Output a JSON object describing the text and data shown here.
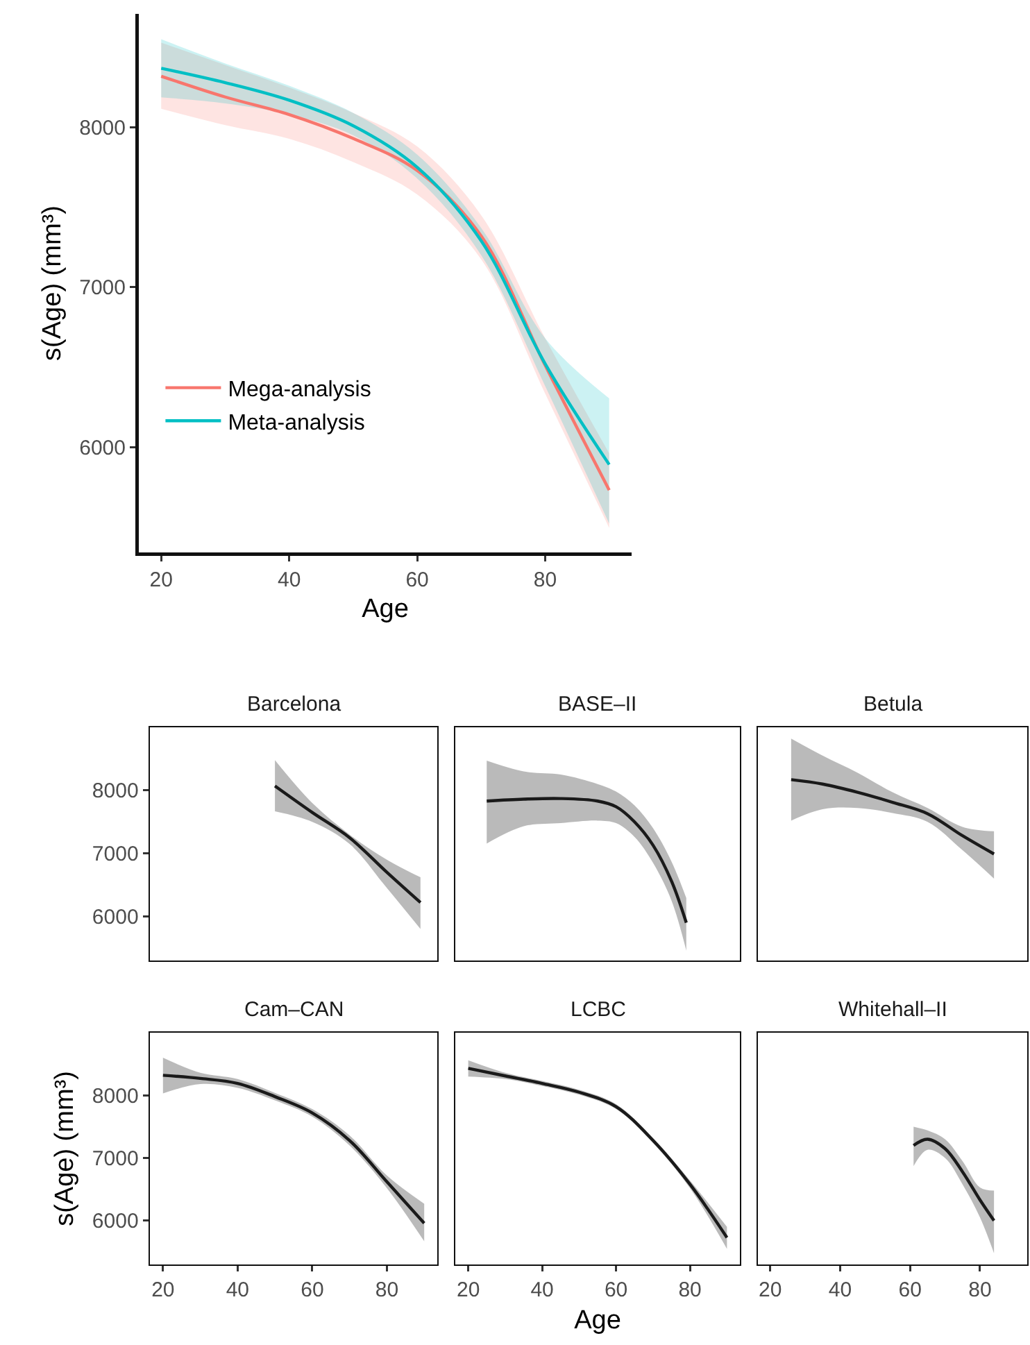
{
  "chart_data": [
    {
      "type": "line",
      "xlabel": "Age",
      "ylabel": "s(Age) (mm³)",
      "xlim": [
        16.5,
        93.5
      ],
      "ylim": [
        5340,
        8710
      ],
      "xticks": [
        20,
        40,
        60,
        80
      ],
      "yticks": [
        6000,
        7000,
        8000
      ],
      "legend": "bottom left",
      "series": [
        {
          "name": "Mega-analysis",
          "color": "#f8766d",
          "x": [
            20,
            30,
            40,
            50,
            60,
            70,
            80,
            90
          ],
          "values": [
            8320,
            8190,
            8080,
            7930,
            7730,
            7320,
            6510,
            5730
          ],
          "lower": [
            8116,
            8014,
            7928,
            7783,
            7580,
            7174,
            6333,
            5493
          ],
          "upper": [
            8530,
            8390,
            8250,
            8090,
            7880,
            7450,
            6680,
            5960
          ]
        },
        {
          "name": "Meta-analysis",
          "color": "#00bfc4",
          "x": [
            20,
            30,
            40,
            50,
            60,
            70,
            80,
            90
          ],
          "values": [
            8370,
            8280,
            8170,
            8010,
            7750,
            7290,
            6520,
            5890
          ],
          "lower": [
            8188,
            8150,
            8080,
            7950,
            7680,
            7200,
            6380,
            5520
          ],
          "upper": [
            8551,
            8400,
            8260,
            8090,
            7830,
            7370,
            6680,
            6304
          ]
        }
      ]
    },
    {
      "type": "line",
      "title": "Barcelona",
      "xlim": [
        16.5,
        93.5
      ],
      "ylim": [
        5300,
        9000
      ],
      "xticks": [
        20,
        40,
        60,
        80
      ],
      "yticks": [
        6000,
        7000,
        8000
      ],
      "tick_labels": "y",
      "series": [
        {
          "color": "#1a1a1a",
          "x": [
            50,
            60,
            70,
            80,
            89
          ],
          "values": [
            8070,
            7650,
            7250,
            6700,
            6220
          ],
          "lower": [
            7667,
            7500,
            7150,
            6450,
            5800
          ],
          "upper": [
            8480,
            7800,
            7300,
            6900,
            6620
          ]
        }
      ]
    },
    {
      "type": "line",
      "title": "BASE–II",
      "xlim": [
        16.5,
        93.5
      ],
      "ylim": [
        5300,
        9000
      ],
      "xticks": [
        20,
        40,
        60,
        80
      ],
      "yticks": [
        6000,
        7000,
        8000
      ],
      "tick_labels": false,
      "series": [
        {
          "color": "#1a1a1a",
          "x": [
            25,
            35,
            45,
            55,
            60,
            65,
            70,
            75,
            79
          ],
          "values": [
            7830,
            7860,
            7870,
            7830,
            7740,
            7500,
            7130,
            6560,
            5900
          ],
          "lower": [
            7156,
            7430,
            7480,
            7520,
            7480,
            7260,
            6850,
            6250,
            5458
          ],
          "upper": [
            8470,
            8300,
            8250,
            8100,
            7980,
            7760,
            7400,
            6870,
            6290
          ]
        }
      ]
    },
    {
      "type": "line",
      "title": "Betula",
      "xlim": [
        16.5,
        93.5
      ],
      "ylim": [
        5300,
        9000
      ],
      "xticks": [
        20,
        40,
        60,
        80
      ],
      "yticks": [
        6000,
        7000,
        8000
      ],
      "tick_labels": false,
      "series": [
        {
          "color": "#1a1a1a",
          "x": [
            26,
            35,
            45,
            55,
            65,
            75,
            84
          ],
          "values": [
            8170,
            8100,
            7970,
            7810,
            7630,
            7280,
            6990
          ],
          "lower": [
            7520,
            7700,
            7720,
            7640,
            7500,
            7050,
            6600
          ],
          "upper": [
            8820,
            8550,
            8280,
            7970,
            7720,
            7420,
            7350
          ]
        }
      ]
    },
    {
      "type": "line",
      "title": "Cam–CAN",
      "ylabel": "s(Age) (mm³)",
      "xlim": [
        16.5,
        93.5
      ],
      "ylim": [
        5300,
        9000
      ],
      "xticks": [
        20,
        40,
        60,
        80
      ],
      "yticks": [
        6000,
        7000,
        8000
      ],
      "series": [
        {
          "color": "#1a1a1a",
          "x": [
            20,
            30,
            40,
            50,
            60,
            70,
            80,
            90
          ],
          "values": [
            8320,
            8270,
            8190,
            7980,
            7720,
            7280,
            6620,
            5960
          ],
          "lower": [
            8030,
            8180,
            8120,
            7920,
            7660,
            7200,
            6520,
            5670
          ],
          "upper": [
            8600,
            8360,
            8260,
            8040,
            7780,
            7360,
            6720,
            6270
          ]
        }
      ]
    },
    {
      "type": "line",
      "title": "LCBC",
      "xlabel": "Age",
      "xlim": [
        16.5,
        93.5
      ],
      "ylim": [
        5300,
        9000
      ],
      "xticks": [
        20,
        40,
        60,
        80
      ],
      "yticks": [
        6000,
        7000,
        8000
      ],
      "tick_labels": "x",
      "series": [
        {
          "color": "#1a1a1a",
          "x": [
            20,
            30,
            40,
            50,
            60,
            70,
            80,
            90
          ],
          "values": [
            8430,
            8310,
            8190,
            8050,
            7820,
            7280,
            6580,
            5730
          ],
          "lower": [
            8300,
            8260,
            8150,
            8010,
            7780,
            7240,
            6520,
            5550
          ],
          "upper": [
            8560,
            8360,
            8230,
            8090,
            7860,
            7320,
            6640,
            5900
          ]
        }
      ]
    },
    {
      "type": "line",
      "title": "Whitehall–II",
      "xlim": [
        16.5,
        93.5
      ],
      "ylim": [
        5300,
        9000
      ],
      "xticks": [
        20,
        40,
        60,
        80
      ],
      "yticks": [
        6000,
        7000,
        8000
      ],
      "tick_labels": "x",
      "series": [
        {
          "color": "#1a1a1a",
          "x": [
            61,
            65,
            70,
            75,
            80,
            84
          ],
          "values": [
            7200,
            7300,
            7150,
            6780,
            6330,
            6000
          ],
          "lower": [
            6870,
            7130,
            7000,
            6580,
            6050,
            5480
          ],
          "upper": [
            7500,
            7440,
            7300,
            6950,
            6530,
            6480
          ]
        }
      ]
    }
  ]
}
